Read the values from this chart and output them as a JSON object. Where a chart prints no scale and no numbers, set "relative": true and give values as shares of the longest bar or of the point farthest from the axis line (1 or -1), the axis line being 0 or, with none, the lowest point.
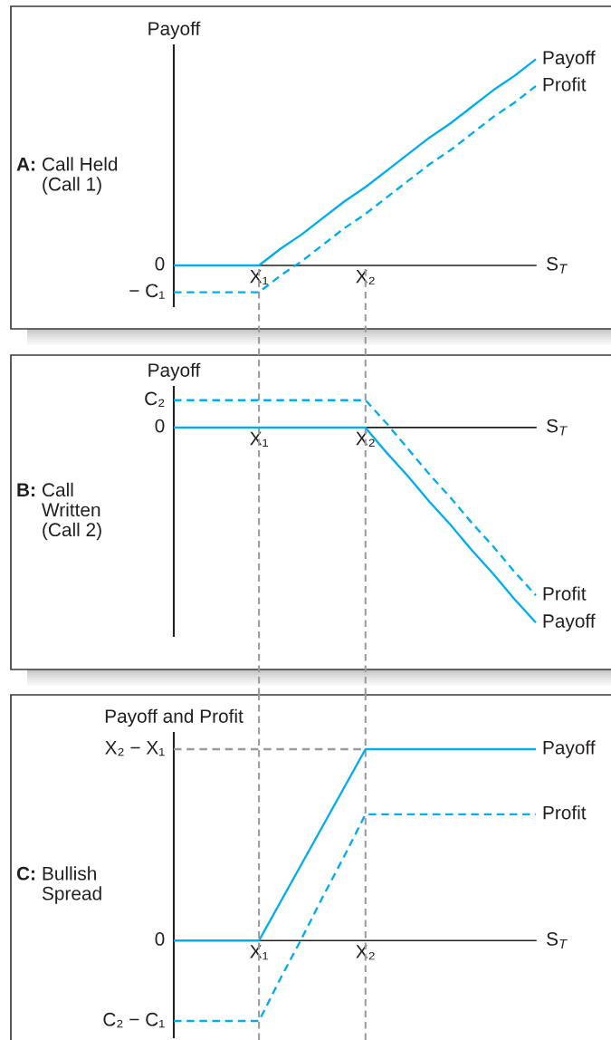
{
  "chart_data": [
    {
      "type": "line",
      "relative": true,
      "title": "A: Call Held\n(Call 1)",
      "ylabel": "Payoff",
      "xlabel": "S$_{T}$",
      "categories": [
        null,
        null,
        null,
        null,
        "X₁",
        null,
        null,
        null,
        null,
        "X₂",
        null,
        null,
        null,
        null,
        null,
        null,
        null,
        null
      ],
      "series": [
        {
          "name": "Payoff",
          "color": "#00aeef",
          "line_style": "solid",
          "values": [
            0,
            0,
            0,
            0,
            0,
            0.08,
            0.15,
            0.23,
            0.31,
            0.38,
            0.46,
            0.54,
            0.62,
            0.69,
            0.77,
            0.85,
            0.92,
            1
          ]
        },
        {
          "name": "Profit",
          "color": "#00aeef",
          "line_style": "dashed",
          "values": [
            -0.13,
            -0.13,
            -0.13,
            -0.13,
            -0.13,
            -0.05,
            0.02,
            0.1,
            0.18,
            0.25,
            0.33,
            0.41,
            0.49,
            0.56,
            0.64,
            0.72,
            0.79,
            0.87
          ]
        }
      ],
      "annotations": [
        "0",
        "− C₁"
      ],
      "ref_lines": [
        {
          "axis": "x",
          "value": "X₁",
          "color": "#9b9b9b",
          "line_style": "dashed"
        },
        {
          "axis": "x",
          "value": "X₂",
          "color": "#9b9b9b",
          "line_style": "dashed"
        }
      ]
    },
    {
      "type": "line",
      "relative": true,
      "title": "B: Call\nWritten\n(Call 2)",
      "ylabel": "Payoff",
      "xlabel": "S$_{T}$",
      "categories": [
        null,
        null,
        null,
        null,
        "X₁",
        null,
        null,
        null,
        null,
        "X₂",
        null,
        null,
        null,
        null,
        null,
        null,
        null,
        null
      ],
      "series": [
        {
          "name": "Profit",
          "color": "#00aeef",
          "line_style": "dashed",
          "values": [
            0.14,
            0.14,
            0.14,
            0.14,
            0.14,
            0.14,
            0.14,
            0.14,
            0.14,
            0.14,
            0.02,
            -0.11,
            -0.24,
            -0.36,
            -0.49,
            -0.61,
            -0.74,
            -0.86
          ]
        },
        {
          "name": "Payoff",
          "color": "#00aeef",
          "line_style": "solid",
          "values": [
            0,
            0,
            0,
            0,
            0,
            0,
            0,
            0,
            0,
            0,
            -0.13,
            -0.25,
            -0.38,
            -0.5,
            -0.63,
            -0.75,
            -0.88,
            -1
          ]
        }
      ],
      "annotations": [
        "C₂",
        "0"
      ],
      "ref_lines": [
        {
          "axis": "x",
          "value": "X₁",
          "color": "#9b9b9b",
          "line_style": "dashed"
        },
        {
          "axis": "x",
          "value": "X₂",
          "color": "#9b9b9b",
          "line_style": "dashed"
        }
      ]
    },
    {
      "type": "line",
      "relative": true,
      "title": "C: Bullish\nSpread",
      "ylabel": "Payoff and Profit",
      "xlabel": "S$_{T}$",
      "categories": [
        null,
        null,
        null,
        null,
        "X₁",
        null,
        null,
        null,
        null,
        "X₂",
        null,
        null,
        null,
        null,
        null,
        null,
        null,
        null
      ],
      "series": [
        {
          "color": "#9b9b9b",
          "line_style": "dashed",
          "values": [
            1,
            1,
            1,
            1,
            1,
            1,
            1,
            1,
            1,
            1,
            null,
            null,
            null,
            null,
            null,
            null,
            null,
            null
          ]
        },
        {
          "name": "Payoff",
          "color": "#00aeef",
          "line_style": "solid",
          "values": [
            0,
            0,
            0,
            0,
            0,
            0.2,
            0.4,
            0.6,
            0.8,
            1,
            1,
            1,
            1,
            1,
            1,
            1,
            1,
            1
          ]
        },
        {
          "name": "Profit",
          "color": "#00aeef",
          "line_style": "dashed",
          "values": [
            -0.42,
            -0.42,
            -0.42,
            -0.42,
            -0.42,
            -0.2,
            0.01,
            0.23,
            0.44,
            0.66,
            0.66,
            0.66,
            0.66,
            0.66,
            0.66,
            0.66,
            0.66,
            0.66
          ]
        }
      ],
      "annotations": [
        "X₂ − X₁",
        "0",
        "C₂ − C₁"
      ],
      "ref_lines": [
        {
          "axis": "x",
          "value": "X₁",
          "color": "#9b9b9b",
          "line_style": "dashed"
        },
        {
          "axis": "x",
          "value": "X₂",
          "color": "#9b9b9b",
          "line_style": "dashed"
        }
      ]
    }
  ]
}
